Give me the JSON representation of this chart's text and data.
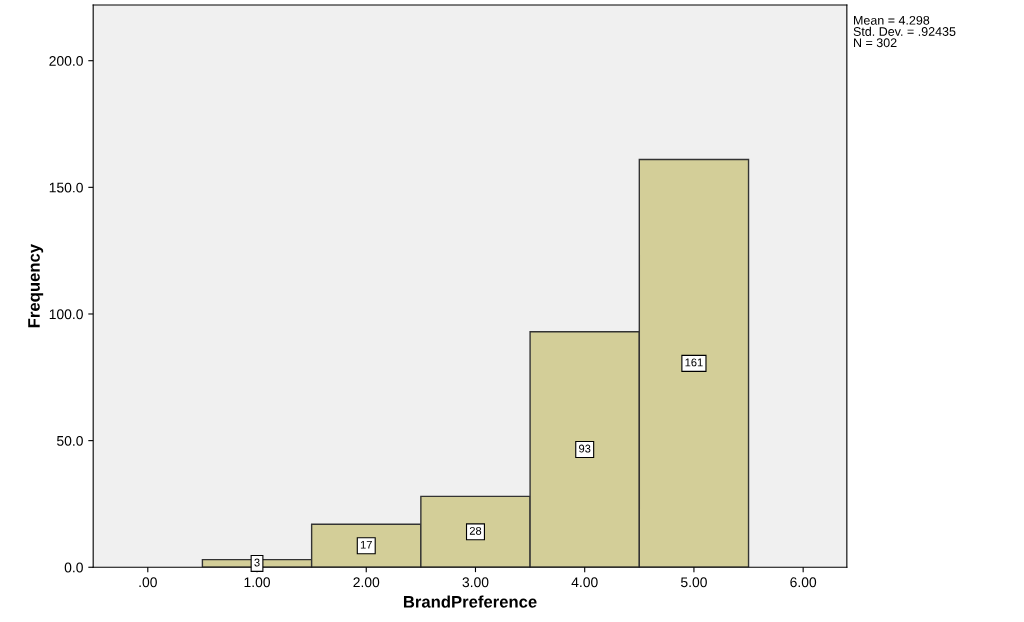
{
  "chart_data": {
    "type": "histogram",
    "xlabel": "BrandPreference",
    "ylabel": "Frequency",
    "bins": [
      0.5,
      1.5,
      2.5,
      3.5,
      4.5,
      5.5
    ],
    "values": [
      3,
      17,
      28,
      93,
      161
    ],
    "color": "#d3ce98",
    "data_labels": true,
    "xlim": [
      -0.5,
      6.4
    ],
    "ylim": [
      0,
      222
    ],
    "xticks": [
      {
        "value": 0,
        "label": ".00"
      },
      {
        "value": 1,
        "label": "1.00"
      },
      {
        "value": 2,
        "label": "2.00"
      },
      {
        "value": 3,
        "label": "3.00"
      },
      {
        "value": 4,
        "label": "4.00"
      },
      {
        "value": 5,
        "label": "5.00"
      },
      {
        "value": 6,
        "label": "6.00"
      }
    ],
    "yticks": [
      {
        "value": 0,
        "label": "0.0"
      },
      {
        "value": 50,
        "label": "50.0"
      },
      {
        "value": 100,
        "label": "100.0"
      },
      {
        "value": 150,
        "label": "150.0"
      },
      {
        "value": 200,
        "label": "200.0"
      }
    ],
    "annotations": [
      "Mean = 4.298\nStd. Dev. = .92435\nN = 302"
    ],
    "grid": false
  }
}
